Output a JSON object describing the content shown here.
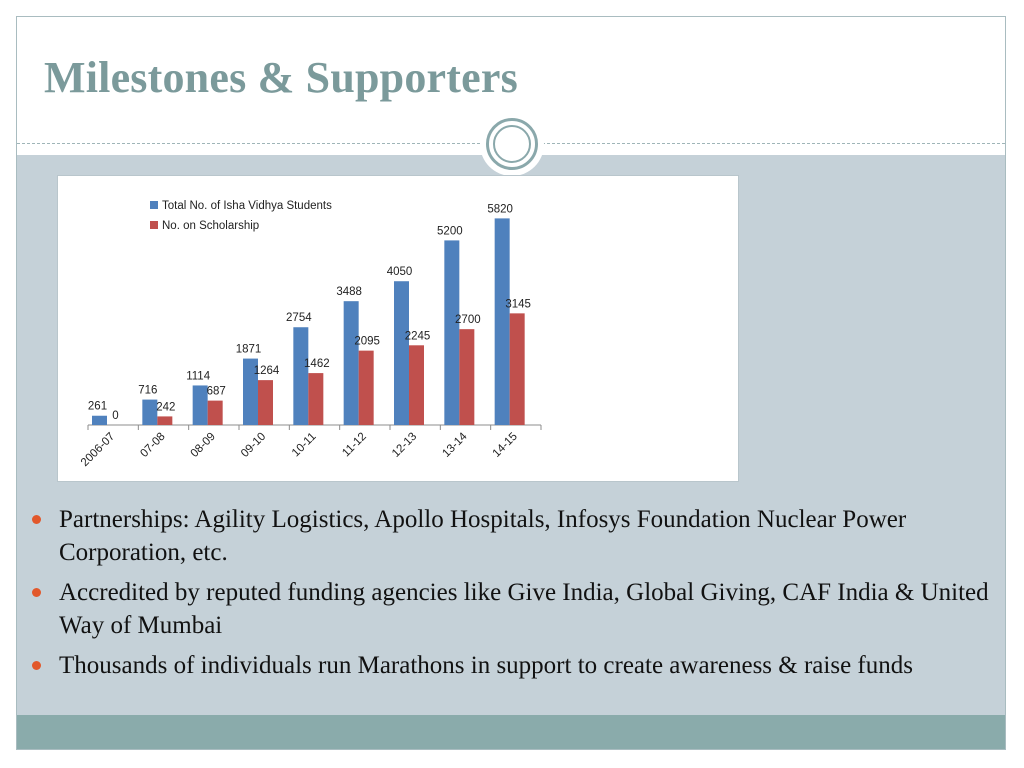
{
  "title": "Milestones & Supporters",
  "colors": {
    "title": "#7b9a9b",
    "content_band": "#c5d1d8",
    "footer_band": "#8aabab",
    "bullet": "#e2582b",
    "series_total": "#4f81bd",
    "series_scholarship": "#c0504d"
  },
  "chart_data": {
    "type": "bar",
    "categories": [
      "2006-07",
      "07-08",
      "08-09",
      "09-10",
      "10-11",
      "11-12",
      "12-13",
      "13-14",
      "14-15"
    ],
    "series": [
      {
        "name": "Total No. of Isha Vidhya Students",
        "values": [
          261,
          716,
          1114,
          1871,
          2754,
          3488,
          4050,
          5200,
          5820
        ]
      },
      {
        "name": "No. on Scholarship",
        "values": [
          0,
          242,
          687,
          1264,
          1462,
          2095,
          2245,
          2700,
          3145
        ]
      }
    ],
    "ylim": [
      0,
      6000
    ],
    "legend": "top-left",
    "grid": false
  },
  "bullets": [
    "Partnerships: Agility Logistics, Apollo Hospitals, Infosys Foundation Nuclear Power Corporation, etc.",
    "Accredited by reputed funding agencies like Give India, Global Giving, CAF India & United Way of Mumbai",
    "Thousands of individuals run Marathons in support to create awareness & raise funds"
  ]
}
